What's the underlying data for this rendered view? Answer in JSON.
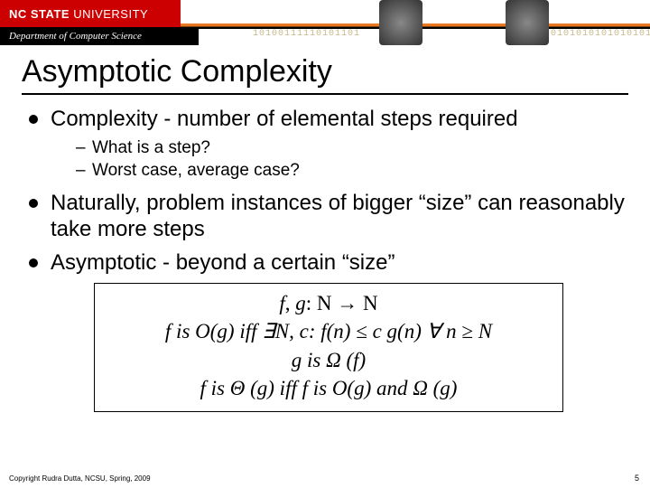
{
  "header": {
    "university_bold": "NC STATE",
    "university_rest": " UNIVERSITY",
    "department": "Department of Computer Science",
    "binary1": "10100111110101101",
    "binary2": "0101010101010101",
    "brand_red": "#cc0000",
    "brand_orange": "#e87722"
  },
  "title": "Asymptotic Complexity",
  "bullets": {
    "b1": "Complexity - number of elemental steps required",
    "b1_sub1": "What is a step?",
    "b1_sub2": "Worst case, average case?",
    "b2": "Naturally, problem instances of bigger “size” can reasonably take more steps",
    "b3": "Asymptotic - beyond a certain “size”"
  },
  "mathbox": {
    "l1_a": "f",
    "l1_b": ", ",
    "l1_c": "g",
    "l1_d": ": N → N",
    "l2": "f is O(g) iff ∃N, c: f(n) ≤ c g(n) ∀ n ≥ N",
    "l3": "g is Ω (f)",
    "l4": "f is Θ (g) iff f is O(g) and Ω (g)"
  },
  "footer": {
    "copyright": "Copyright Rudra Dutta, NCSU, Spring, 2009",
    "page": "5"
  }
}
